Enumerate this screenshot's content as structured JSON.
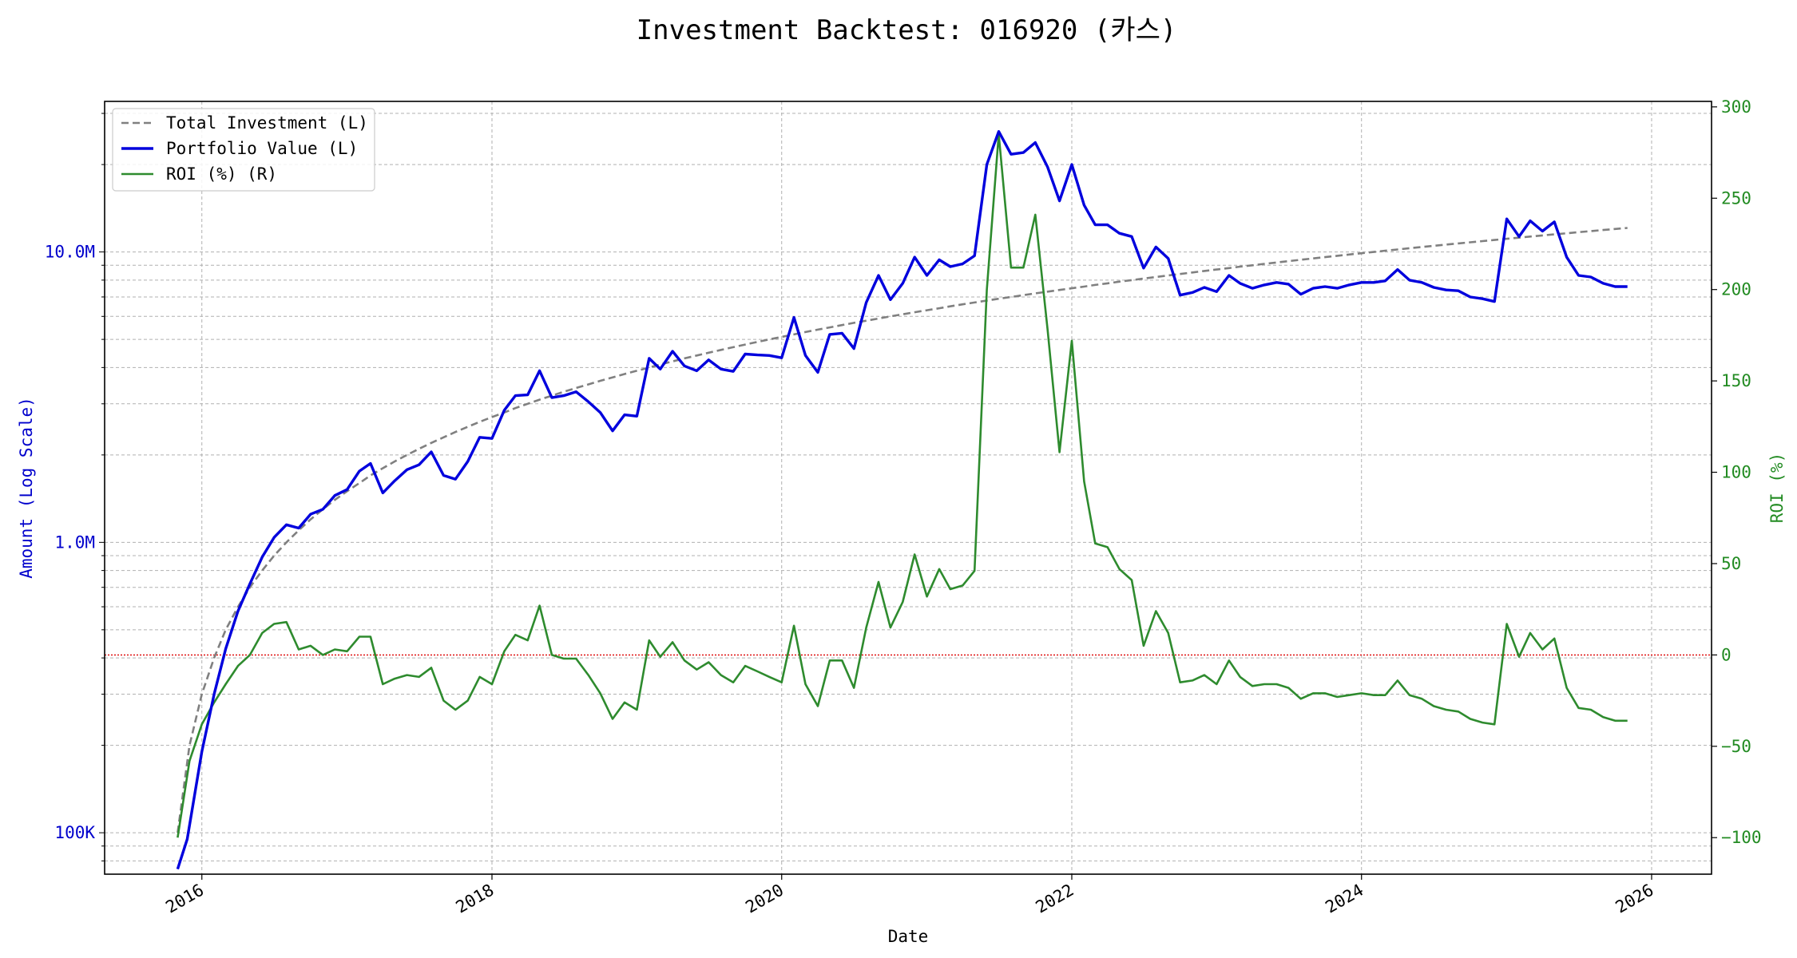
{
  "chart_data": {
    "type": "line",
    "title": "Investment Backtest: 016920 (카스)",
    "xlabel": "Date",
    "ylabel_left": "Amount (Log Scale)",
    "ylabel_right": "ROI (%)",
    "y_left_scale": "log",
    "y_left_lim": [
      72000,
      33000000
    ],
    "y_right_lim": [
      -120,
      303
    ],
    "x_lim": [
      "2015-05-01",
      "2026-06-01"
    ],
    "grid": true,
    "legend_position": "top-left",
    "x_ticks": [
      {
        "date": "2016-01-01",
        "label": "2016"
      },
      {
        "date": "2018-01-01",
        "label": "2018"
      },
      {
        "date": "2020-01-01",
        "label": "2020"
      },
      {
        "date": "2022-01-01",
        "label": "2022"
      },
      {
        "date": "2024-01-01",
        "label": "2024"
      },
      {
        "date": "2026-01-01",
        "label": "2026"
      }
    ],
    "y_left_ticks": [
      {
        "value": 100000,
        "label": "100K"
      },
      {
        "value": 1000000,
        "label": "1.0M"
      },
      {
        "value": 10000000,
        "label": "10.0M"
      }
    ],
    "y_right_ticks": [
      {
        "value": -100,
        "label": "−100"
      },
      {
        "value": -50,
        "label": "−50"
      },
      {
        "value": 0,
        "label": "0"
      },
      {
        "value": 50,
        "label": "50"
      },
      {
        "value": 100,
        "label": "100"
      },
      {
        "value": 150,
        "label": "150"
      },
      {
        "value": 200,
        "label": "200"
      },
      {
        "value": 250,
        "label": "250"
      },
      {
        "value": 300,
        "label": "300"
      }
    ],
    "zero_line": {
      "axis": "right",
      "value": 0,
      "color": "#dd0000"
    },
    "legend": [
      {
        "label": "Total Investment (L)",
        "series": "total_investment"
      },
      {
        "label": "Portfolio Value (L)",
        "series": "portfolio_value"
      },
      {
        "label": "ROI (%) (R)",
        "series": "roi"
      }
    ],
    "colors": {
      "total_investment": "#808080",
      "portfolio_value": "#0000dd",
      "roi": "#2e8b2e",
      "left_axis": "#0000cc",
      "right_axis": "#228b22"
    },
    "portfolio_value": [
      [
        "2015-11-01",
        75000
      ],
      [
        "2015-11-25",
        95000
      ],
      [
        "2016-01-01",
        190000
      ],
      [
        "2016-02-01",
        300000
      ],
      [
        "2016-03-01",
        430000
      ],
      [
        "2016-04-01",
        580000
      ],
      [
        "2016-05-01",
        720000
      ],
      [
        "2016-06-01",
        890000
      ],
      [
        "2016-07-01",
        1040000
      ],
      [
        "2016-08-01",
        1150000
      ],
      [
        "2016-09-01",
        1120000
      ],
      [
        "2016-10-01",
        1250000
      ],
      [
        "2016-11-01",
        1300000
      ],
      [
        "2016-12-01",
        1450000
      ],
      [
        "2017-01-01",
        1520000
      ],
      [
        "2017-02-01",
        1760000
      ],
      [
        "2017-03-01",
        1870000
      ],
      [
        "2017-04-01",
        1480000
      ],
      [
        "2017-05-01",
        1630000
      ],
      [
        "2017-06-01",
        1780000
      ],
      [
        "2017-07-01",
        1850000
      ],
      [
        "2017-08-01",
        2050000
      ],
      [
        "2017-09-01",
        1700000
      ],
      [
        "2017-10-01",
        1650000
      ],
      [
        "2017-11-01",
        1900000
      ],
      [
        "2017-12-01",
        2300000
      ],
      [
        "2018-01-01",
        2280000
      ],
      [
        "2018-02-01",
        2850000
      ],
      [
        "2018-03-01",
        3200000
      ],
      [
        "2018-04-01",
        3220000
      ],
      [
        "2018-05-01",
        3900000
      ],
      [
        "2018-06-01",
        3150000
      ],
      [
        "2018-07-01",
        3200000
      ],
      [
        "2018-08-01",
        3300000
      ],
      [
        "2018-09-01",
        3050000
      ],
      [
        "2018-10-01",
        2800000
      ],
      [
        "2018-11-01",
        2420000
      ],
      [
        "2018-12-01",
        2750000
      ],
      [
        "2019-01-01",
        2720000
      ],
      [
        "2019-02-01",
        4300000
      ],
      [
        "2019-03-01",
        3950000
      ],
      [
        "2019-04-01",
        4550000
      ],
      [
        "2019-05-01",
        4050000
      ],
      [
        "2019-06-01",
        3900000
      ],
      [
        "2019-07-01",
        4250000
      ],
      [
        "2019-08-01",
        3950000
      ],
      [
        "2019-09-01",
        3880000
      ],
      [
        "2019-10-01",
        4450000
      ],
      [
        "2019-11-01",
        4420000
      ],
      [
        "2019-12-01",
        4400000
      ],
      [
        "2020-01-01",
        4320000
      ],
      [
        "2020-02-01",
        5950000
      ],
      [
        "2020-03-01",
        4400000
      ],
      [
        "2020-04-01",
        3850000
      ],
      [
        "2020-05-01",
        5200000
      ],
      [
        "2020-06-01",
        5250000
      ],
      [
        "2020-07-01",
        4650000
      ],
      [
        "2020-08-01",
        6700000
      ],
      [
        "2020-09-01",
        8300000
      ],
      [
        "2020-10-01",
        6850000
      ],
      [
        "2020-11-01",
        7800000
      ],
      [
        "2020-12-01",
        9600000
      ],
      [
        "2021-01-01",
        8300000
      ],
      [
        "2021-02-01",
        9400000
      ],
      [
        "2021-03-01",
        8900000
      ],
      [
        "2021-04-01",
        9100000
      ],
      [
        "2021-05-01",
        9700000
      ],
      [
        "2021-06-01",
        20000000
      ],
      [
        "2021-07-01",
        26000000
      ],
      [
        "2021-08-01",
        21700000
      ],
      [
        "2021-09-01",
        22000000
      ],
      [
        "2021-10-01",
        23800000
      ],
      [
        "2021-11-01",
        19600000
      ],
      [
        "2021-12-01",
        15000000
      ],
      [
        "2022-01-01",
        20000000
      ],
      [
        "2022-02-01",
        14500000
      ],
      [
        "2022-03-01",
        12400000
      ],
      [
        "2022-04-01",
        12400000
      ],
      [
        "2022-05-01",
        11600000
      ],
      [
        "2022-06-01",
        11300000
      ],
      [
        "2022-07-01",
        8800000
      ],
      [
        "2022-08-01",
        10400000
      ],
      [
        "2022-09-01",
        9500000
      ],
      [
        "2022-10-01",
        7100000
      ],
      [
        "2022-11-01",
        7250000
      ],
      [
        "2022-12-01",
        7550000
      ],
      [
        "2023-01-01",
        7300000
      ],
      [
        "2023-02-01",
        8300000
      ],
      [
        "2023-03-01",
        7800000
      ],
      [
        "2023-04-01",
        7500000
      ],
      [
        "2023-05-01",
        7700000
      ],
      [
        "2023-06-01",
        7850000
      ],
      [
        "2023-07-01",
        7750000
      ],
      [
        "2023-08-01",
        7150000
      ],
      [
        "2023-09-01",
        7500000
      ],
      [
        "2023-10-01",
        7600000
      ],
      [
        "2023-11-01",
        7500000
      ],
      [
        "2023-12-01",
        7700000
      ],
      [
        "2024-01-01",
        7850000
      ],
      [
        "2024-02-01",
        7850000
      ],
      [
        "2024-03-01",
        7950000
      ],
      [
        "2024-04-01",
        8700000
      ],
      [
        "2024-05-01",
        8000000
      ],
      [
        "2024-06-01",
        7850000
      ],
      [
        "2024-07-01",
        7550000
      ],
      [
        "2024-08-01",
        7400000
      ],
      [
        "2024-09-01",
        7350000
      ],
      [
        "2024-10-01",
        7000000
      ],
      [
        "2024-11-01",
        6900000
      ],
      [
        "2024-12-01",
        6750000
      ],
      [
        "2025-01-01",
        13000000
      ],
      [
        "2025-02-01",
        11300000
      ],
      [
        "2025-03-01",
        12800000
      ],
      [
        "2025-04-01",
        11800000
      ],
      [
        "2025-05-01",
        12700000
      ],
      [
        "2025-06-01",
        9600000
      ],
      [
        "2025-07-01",
        8300000
      ],
      [
        "2025-08-01",
        8200000
      ],
      [
        "2025-09-01",
        7800000
      ],
      [
        "2025-10-01",
        7600000
      ],
      [
        "2025-11-01",
        7600000
      ]
    ],
    "roi": [
      [
        "2015-11-01",
        -100
      ],
      [
        "2015-12-01",
        -58
      ],
      [
        "2016-01-01",
        -38
      ],
      [
        "2016-02-01",
        -26
      ],
      [
        "2016-03-01",
        -16
      ],
      [
        "2016-04-01",
        -6
      ],
      [
        "2016-05-01",
        0
      ],
      [
        "2016-06-01",
        12
      ],
      [
        "2016-07-01",
        17
      ],
      [
        "2016-08-01",
        18
      ],
      [
        "2016-09-01",
        3
      ],
      [
        "2016-10-01",
        5
      ],
      [
        "2016-11-01",
        0
      ],
      [
        "2016-12-01",
        3
      ],
      [
        "2017-01-01",
        2
      ],
      [
        "2017-02-01",
        10
      ],
      [
        "2017-03-01",
        10
      ],
      [
        "2017-04-01",
        -16
      ],
      [
        "2017-05-01",
        -13
      ],
      [
        "2017-06-01",
        -11
      ],
      [
        "2017-07-01",
        -12
      ],
      [
        "2017-08-01",
        -7
      ],
      [
        "2017-09-01",
        -25
      ],
      [
        "2017-10-01",
        -30
      ],
      [
        "2017-11-01",
        -25
      ],
      [
        "2017-12-01",
        -12
      ],
      [
        "2018-01-01",
        -16
      ],
      [
        "2018-02-01",
        2
      ],
      [
        "2018-03-01",
        11
      ],
      [
        "2018-04-01",
        8
      ],
      [
        "2018-05-01",
        27
      ],
      [
        "2018-06-01",
        0
      ],
      [
        "2018-07-01",
        -2
      ],
      [
        "2018-08-01",
        -2
      ],
      [
        "2018-09-01",
        -11
      ],
      [
        "2018-10-01",
        -21
      ],
      [
        "2018-11-01",
        -35
      ],
      [
        "2018-12-01",
        -26
      ],
      [
        "2019-01-01",
        -30
      ],
      [
        "2019-02-01",
        8
      ],
      [
        "2019-03-01",
        -1
      ],
      [
        "2019-04-01",
        7
      ],
      [
        "2019-05-01",
        -3
      ],
      [
        "2019-06-01",
        -8
      ],
      [
        "2019-07-01",
        -4
      ],
      [
        "2019-08-01",
        -11
      ],
      [
        "2019-09-01",
        -15
      ],
      [
        "2019-10-01",
        -6
      ],
      [
        "2019-11-01",
        -9
      ],
      [
        "2019-12-01",
        -12
      ],
      [
        "2020-01-01",
        -15
      ],
      [
        "2020-02-01",
        16
      ],
      [
        "2020-03-01",
        -16
      ],
      [
        "2020-04-01",
        -28
      ],
      [
        "2020-05-01",
        -3
      ],
      [
        "2020-06-01",
        -3
      ],
      [
        "2020-07-01",
        -18
      ],
      [
        "2020-08-01",
        15
      ],
      [
        "2020-09-01",
        40
      ],
      [
        "2020-10-01",
        15
      ],
      [
        "2020-11-01",
        29
      ],
      [
        "2020-12-01",
        55
      ],
      [
        "2021-01-01",
        32
      ],
      [
        "2021-02-01",
        47
      ],
      [
        "2021-03-01",
        36
      ],
      [
        "2021-04-01",
        38
      ],
      [
        "2021-05-01",
        46
      ],
      [
        "2021-06-01",
        200
      ],
      [
        "2021-07-01",
        285
      ],
      [
        "2021-08-01",
        212
      ],
      [
        "2021-09-01",
        212
      ],
      [
        "2021-10-01",
        241
      ],
      [
        "2021-11-01",
        178
      ],
      [
        "2021-12-01",
        111
      ],
      [
        "2022-01-01",
        172
      ],
      [
        "2022-02-01",
        95
      ],
      [
        "2022-03-01",
        61
      ],
      [
        "2022-04-01",
        59
      ],
      [
        "2022-05-01",
        47
      ],
      [
        "2022-06-01",
        41
      ],
      [
        "2022-07-01",
        5
      ],
      [
        "2022-08-01",
        24
      ],
      [
        "2022-09-01",
        12
      ],
      [
        "2022-10-01",
        -15
      ],
      [
        "2022-11-01",
        -14
      ],
      [
        "2022-12-01",
        -11
      ],
      [
        "2023-01-01",
        -16
      ],
      [
        "2023-02-01",
        -3
      ],
      [
        "2023-03-01",
        -12
      ],
      [
        "2023-04-01",
        -17
      ],
      [
        "2023-05-01",
        -16
      ],
      [
        "2023-06-01",
        -16
      ],
      [
        "2023-07-01",
        -18
      ],
      [
        "2023-08-01",
        -24
      ],
      [
        "2023-09-01",
        -21
      ],
      [
        "2023-10-01",
        -21
      ],
      [
        "2023-11-01",
        -23
      ],
      [
        "2023-12-01",
        -22
      ],
      [
        "2024-01-01",
        -21
      ],
      [
        "2024-02-01",
        -22
      ],
      [
        "2024-03-01",
        -22
      ],
      [
        "2024-04-01",
        -14
      ],
      [
        "2024-05-01",
        -22
      ],
      [
        "2024-06-01",
        -24
      ],
      [
        "2024-07-01",
        -28
      ],
      [
        "2024-08-01",
        -30
      ],
      [
        "2024-09-01",
        -31
      ],
      [
        "2024-10-01",
        -35
      ],
      [
        "2024-11-01",
        -37
      ],
      [
        "2024-12-01",
        -38
      ],
      [
        "2025-01-01",
        17
      ],
      [
        "2025-02-01",
        -1
      ],
      [
        "2025-03-01",
        12
      ],
      [
        "2025-04-01",
        3
      ],
      [
        "2025-05-01",
        9
      ],
      [
        "2025-06-01",
        -18
      ],
      [
        "2025-07-01",
        -29
      ],
      [
        "2025-08-01",
        -30
      ],
      [
        "2025-09-01",
        -34
      ],
      [
        "2025-10-01",
        -36
      ],
      [
        "2025-11-01",
        -36
      ]
    ],
    "total_investment_monthly": {
      "start": "2015-11-01",
      "end": "2025-11-01",
      "monthly_amount": 100000
    }
  }
}
